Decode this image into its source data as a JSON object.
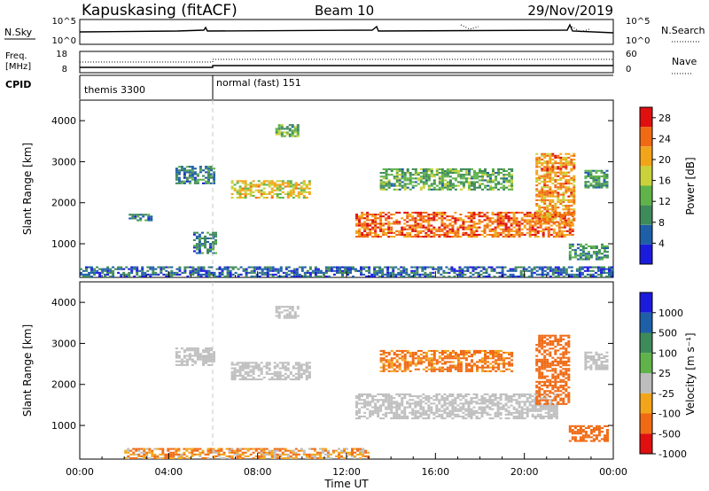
{
  "header": {
    "station": "Kapuskasing (fitACF)",
    "beam": "Beam 10",
    "date": "29/Nov/2019"
  },
  "status_panels": {
    "nsky_label": "N.Sky",
    "nsearch_label": "N.Search",
    "noise_ticks": [
      "10^5",
      "10^0"
    ],
    "freq_label_line1": "Freq.",
    "freq_label_line2": "[MHz]",
    "freq_ticks": [
      "18",
      "8"
    ],
    "nave_label": "Nave",
    "nave_ticks": [
      "60",
      "0"
    ],
    "cpid_label": "CPID",
    "cpid_segments": [
      "themis 3300",
      "normal (fast) 151"
    ]
  },
  "time_axis": {
    "label": "Time UT",
    "ticks": [
      "00:00",
      "04:00",
      "08:00",
      "12:00",
      "16:00",
      "20:00",
      "00:00"
    ]
  },
  "colors": {
    "power_scale": [
      "#1b1bdc",
      "#1f5fa8",
      "#3f8a5a",
      "#5fb34a",
      "#c9d23a",
      "#f2a51a",
      "#f06a14",
      "#e01010"
    ],
    "velocity_scale": [
      "#1b1bdc",
      "#1f5fa8",
      "#3f8a5a",
      "#5fb34a",
      "#bdbdbd",
      "#f2a51a",
      "#f06a14",
      "#e01010"
    ],
    "ground_scatter": "#bfbfbf"
  },
  "chart_data": [
    {
      "type": "heatmap",
      "panel": "power",
      "xlabel": "Time UT",
      "ylabel": "Slant Range [km]",
      "xlim_hours": [
        0,
        24
      ],
      "ylim_km": [
        180,
        4500
      ],
      "y_ticks": [
        1000,
        2000,
        3000,
        4000
      ],
      "colorbar": {
        "label": "Power [dB]",
        "ticks": [
          "4",
          "8",
          "12",
          "16",
          "20",
          "24",
          "28"
        ],
        "range": [
          0,
          30
        ]
      },
      "regions": [
        {
          "t0": 2.2,
          "t1": 3.2,
          "r0": 1550,
          "r1": 1700,
          "value": 8
        },
        {
          "t0": 4.3,
          "t1": 6.0,
          "r0": 2450,
          "r1": 2900,
          "value": 8
        },
        {
          "t0": 5.1,
          "t1": 6.1,
          "r0": 750,
          "r1": 1250,
          "value": 8
        },
        {
          "t0": 6.8,
          "t1": 10.3,
          "r0": 2100,
          "r1": 2550,
          "value": 18
        },
        {
          "t0": 8.8,
          "t1": 9.8,
          "r0": 3600,
          "r1": 3900,
          "value": 12
        },
        {
          "t0": 12.4,
          "t1": 22.2,
          "r0": 1150,
          "r1": 1750,
          "value": 24
        },
        {
          "t0": 13.5,
          "t1": 19.5,
          "r0": 2300,
          "r1": 2800,
          "value": 12
        },
        {
          "t0": 20.5,
          "t1": 22.2,
          "r0": 1500,
          "r1": 3200,
          "value": 22
        },
        {
          "t0": 22.0,
          "t1": 23.7,
          "r0": 600,
          "r1": 1000,
          "value": 10
        },
        {
          "t0": 22.7,
          "t1": 23.7,
          "r0": 2350,
          "r1": 2800,
          "value": 10
        },
        {
          "t0": 0.0,
          "t1": 24.0,
          "r0": 180,
          "r1": 450,
          "value": 6
        }
      ]
    },
    {
      "type": "heatmap",
      "panel": "velocity",
      "xlabel": "Time UT",
      "ylabel": "Slant Range [km]",
      "xlim_hours": [
        0,
        24
      ],
      "ylim_km": [
        180,
        4500
      ],
      "y_ticks": [
        1000,
        2000,
        3000,
        4000
      ],
      "colorbar": {
        "label": "Velocity [m s⁻¹]",
        "ticks": [
          "1000",
          "500",
          "100",
          "25",
          "-25",
          "-100",
          "-500",
          "-1000"
        ]
      },
      "regions": [
        {
          "t0": 4.3,
          "t1": 6.0,
          "r0": 2450,
          "r1": 2900,
          "value": 0
        },
        {
          "t0": 6.8,
          "t1": 10.3,
          "r0": 2100,
          "r1": 2550,
          "value": 0
        },
        {
          "t0": 8.8,
          "t1": 9.8,
          "r0": 3600,
          "r1": 3900,
          "value": 0
        },
        {
          "t0": 12.4,
          "t1": 21.5,
          "r0": 1150,
          "r1": 1750,
          "value": 0
        },
        {
          "t0": 13.5,
          "t1": 19.5,
          "r0": 2300,
          "r1": 2800,
          "value": -150
        },
        {
          "t0": 20.5,
          "t1": 22.0,
          "r0": 1500,
          "r1": 3200,
          "value": -300
        },
        {
          "t0": 22.0,
          "t1": 23.7,
          "r0": 600,
          "r1": 1000,
          "value": -200
        },
        {
          "t0": 22.7,
          "t1": 23.7,
          "r0": 2350,
          "r1": 2800,
          "value": 0
        },
        {
          "t0": 2.0,
          "t1": 13.0,
          "r0": 180,
          "r1": 450,
          "value": -80
        }
      ]
    }
  ]
}
